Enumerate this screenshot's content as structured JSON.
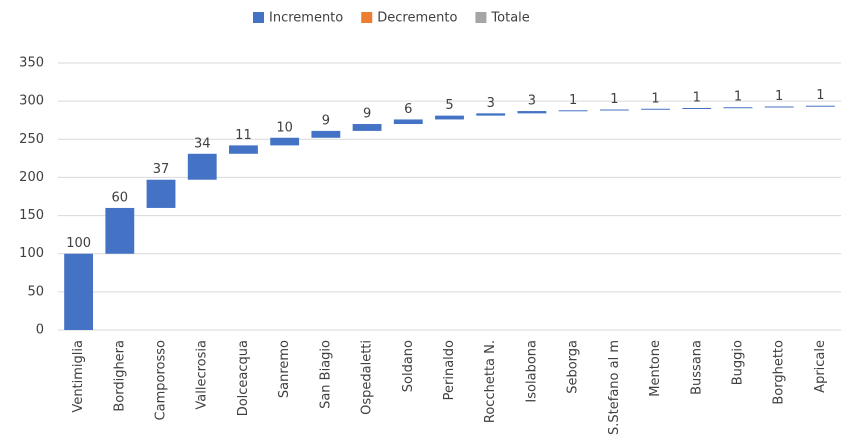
{
  "chart_data": {
    "type": "waterfall",
    "legend": [
      {
        "name": "Incremento",
        "color": "#4472c4"
      },
      {
        "name": "Decremento",
        "color": "#ed7d31"
      },
      {
        "name": "Totale",
        "color": "#a5a5a5"
      }
    ],
    "categories": [
      "Ventimiglia",
      "Bordighera",
      "Camporosso",
      "Vallecrosia",
      "Dolceacqua",
      "Sanremo",
      "San Biagio",
      "Ospedaletti",
      "Soldano",
      "Perinaldo",
      "Rocchetta N.",
      "Isolabona",
      "Seborga",
      "S.Stefano al m",
      "Mentone",
      "Bussana",
      "Buggio",
      "Borghetto",
      "Apricale"
    ],
    "values": [
      100,
      60,
      37,
      34,
      11,
      10,
      9,
      9,
      6,
      5,
      3,
      3,
      1,
      1,
      1,
      1,
      1,
      1,
      1
    ],
    "ylim": [
      0,
      350
    ],
    "yticks": [
      0,
      50,
      100,
      150,
      200,
      250,
      300,
      350
    ],
    "grid": true
  }
}
